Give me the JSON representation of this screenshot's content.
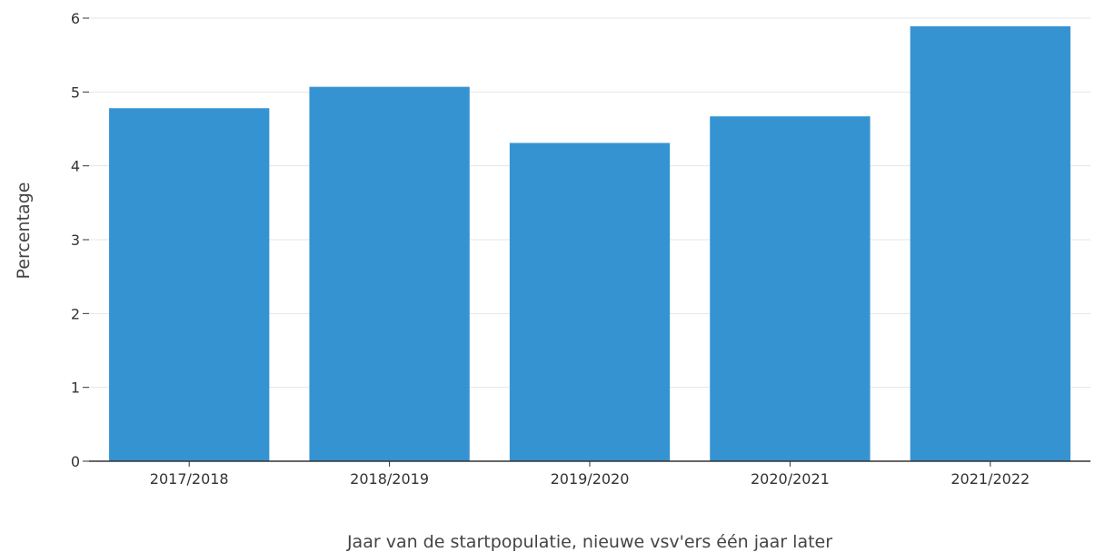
{
  "chart_data": {
    "type": "bar",
    "categories": [
      "2017/2018",
      "2018/2019",
      "2019/2020",
      "2020/2021",
      "2021/2022"
    ],
    "values": [
      4.78,
      5.07,
      4.31,
      4.67,
      5.89
    ],
    "xlabel": "Jaar van de startpopulatie, nieuwe vsv'ers één jaar later",
    "ylabel": "Percentage",
    "ylim": [
      0,
      6
    ],
    "yticks": [
      0,
      1,
      2,
      3,
      4,
      5,
      6
    ],
    "grid": true,
    "bar_color": "#3593d2"
  }
}
